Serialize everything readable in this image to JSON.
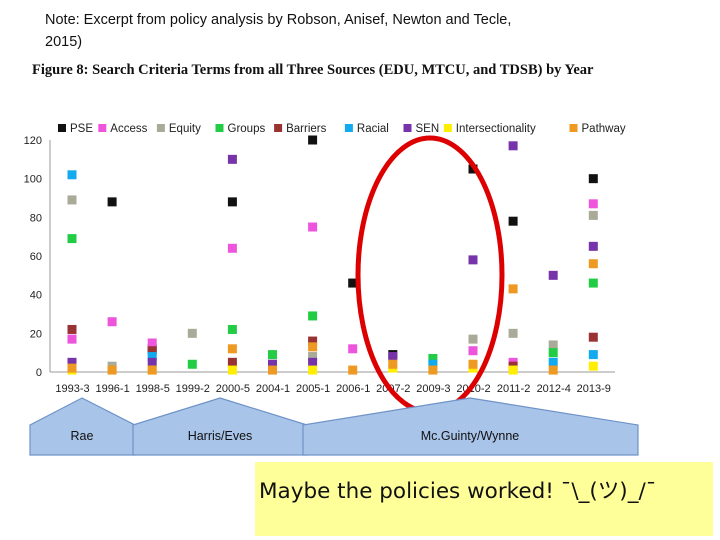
{
  "note": "Note: Excerpt from policy analysis by Robson, Anisef, Newton and Tecle, 2015)",
  "figure_title": "Figure 8: Search Criteria Terms from all Three Sources (EDU, MTCU, and TDSB) by Year",
  "chart_data": {
    "type": "scatter",
    "title": "",
    "xlabel": "",
    "ylabel": "",
    "ylim": [
      0,
      120
    ],
    "yticks": [
      0,
      20,
      40,
      60,
      80,
      100,
      120
    ],
    "grid": false,
    "legend_position": "top",
    "categories": [
      "1993-3",
      "1996-1",
      "1998-5",
      "1999-2",
      "2000-5",
      "2004-1",
      "2005-1",
      "2006-1",
      "2007-2",
      "2009-3",
      "2010-2",
      "2011-2",
      "2012-4",
      "2013-9"
    ],
    "series": [
      {
        "name": "PSE",
        "color": "#111111",
        "values": [
          4,
          88,
          12,
          null,
          88,
          null,
          120,
          46,
          9,
          null,
          105,
          78,
          null,
          100
        ]
      },
      {
        "name": "Access",
        "color": "#ee55dd",
        "values": [
          17,
          26,
          15,
          null,
          64,
          null,
          75,
          12,
          null,
          null,
          11,
          5,
          null,
          87
        ]
      },
      {
        "name": "Equity",
        "color": "#aaaa99",
        "values": [
          89,
          3,
          null,
          20,
          null,
          4,
          8,
          null,
          null,
          null,
          17,
          20,
          14,
          81
        ]
      },
      {
        "name": "Groups",
        "color": "#22cc44",
        "values": [
          69,
          null,
          null,
          4,
          22,
          9,
          29,
          null,
          null,
          7,
          null,
          null,
          10,
          46
        ]
      },
      {
        "name": "Barriers",
        "color": "#993333",
        "values": [
          22,
          null,
          11,
          null,
          5,
          null,
          16,
          null,
          null,
          null,
          null,
          3,
          null,
          18
        ]
      },
      {
        "name": "Racial",
        "color": "#11aaee",
        "values": [
          102,
          null,
          8,
          null,
          null,
          null,
          null,
          null,
          null,
          4,
          null,
          null,
          5,
          9
        ]
      },
      {
        "name": "SEN",
        "color": "#7733aa",
        "values": [
          5,
          null,
          5,
          null,
          110,
          4,
          5,
          null,
          8,
          null,
          58,
          117,
          50,
          65
        ]
      },
      {
        "name": "Intersectionality",
        "color": "#ffee00",
        "values": [
          1,
          null,
          1,
          null,
          1,
          null,
          1,
          null,
          2,
          null,
          2,
          1,
          null,
          3
        ]
      },
      {
        "name": "Pathway",
        "color": "#ee9922",
        "values": [
          2,
          1,
          1,
          null,
          12,
          1,
          13,
          1,
          4,
          1,
          4,
          43,
          1,
          56
        ]
      }
    ]
  },
  "arrows": [
    {
      "label": "Rae",
      "color": "#a8c4e8"
    },
    {
      "label": "Harris/Eves",
      "color": "#a8c4e8"
    },
    {
      "label": "Mc.Guinty/Wynne",
      "color": "#a8c4e8"
    }
  ],
  "highlight": {
    "color": "#dd0000"
  },
  "callout": {
    "text": "Maybe the policies worked! ¯\\_(ツ)_/¯",
    "background": "#ffff99"
  }
}
